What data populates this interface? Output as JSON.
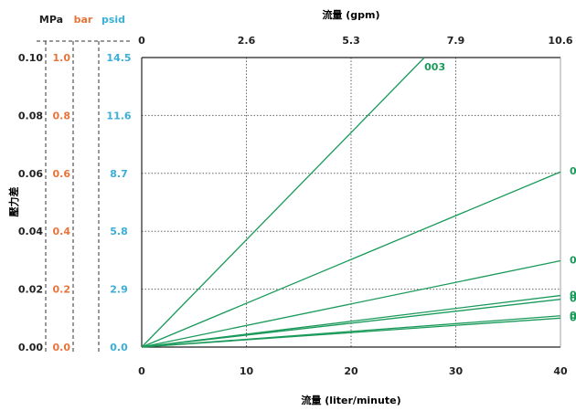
{
  "chart_data": {
    "type": "line",
    "title": "",
    "xlabel": "流量 (liter/minute)",
    "x2label": "流量 (gpm)",
    "ylabel": "壓力差",
    "xlim": [
      0,
      40
    ],
    "ylim_mpa": [
      0,
      0.1
    ],
    "x_ticks": [
      "0",
      "10",
      "20",
      "30",
      "40"
    ],
    "x2_ticks": [
      "0",
      "2.6",
      "5.3",
      "7.9",
      "10.6"
    ],
    "y_units": [
      {
        "name": "MPa",
        "color": "#222222",
        "ticks": [
          "0.00",
          "0.02",
          "0.04",
          "0.06",
          "0.08",
          "0.10"
        ]
      },
      {
        "name": "bar",
        "color": "#e8743b",
        "ticks": [
          "0.0",
          "0.2",
          "0.4",
          "0.6",
          "0.8",
          "1.0"
        ]
      },
      {
        "name": "psid",
        "color": "#3aaed8",
        "ticks": [
          "0.0",
          "2.9",
          "5.8",
          "8.7",
          "11.6",
          "14.5"
        ]
      }
    ],
    "grid": true,
    "line_color": "#1a9a5a",
    "series": [
      {
        "name": "003",
        "x": [
          0,
          27
        ],
        "y": [
          0,
          0.1
        ]
      },
      {
        "name": "0",
        "x": [
          0,
          40
        ],
        "y": [
          0,
          0.0605
        ]
      },
      {
        "name": "0",
        "x": [
          0,
          40
        ],
        "y": [
          0,
          0.0298
        ]
      },
      {
        "name": "0",
        "x": [
          0,
          40
        ],
        "y": [
          0,
          0.0178
        ]
      },
      {
        "name": "0",
        "x": [
          0,
          40
        ],
        "y": [
          0,
          0.0165
        ]
      },
      {
        "name": "0",
        "x": [
          0,
          40
        ],
        "y": [
          0,
          0.0108
        ]
      },
      {
        "name": "0",
        "x": [
          0,
          40
        ],
        "y": [
          0,
          0.01
        ]
      }
    ]
  }
}
